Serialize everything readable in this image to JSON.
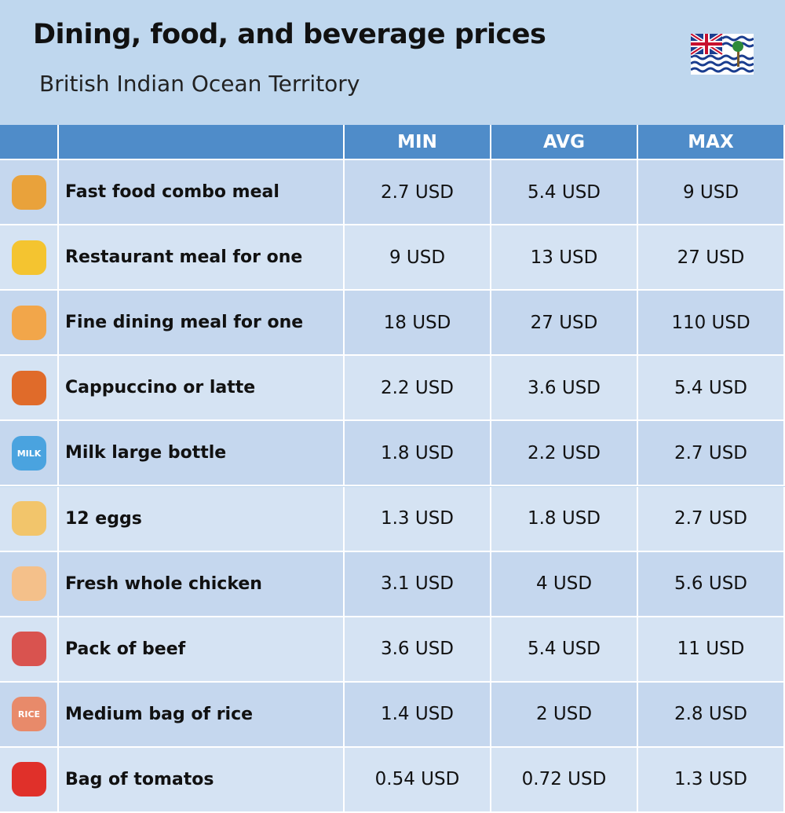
{
  "header": {
    "title": "Dining, food, and beverage prices",
    "subtitle": "British Indian Ocean Territory"
  },
  "table": {
    "columns": [
      "MIN",
      "AVG",
      "MAX"
    ],
    "rows": [
      {
        "item": "Fast food combo meal",
        "min": "2.7 USD",
        "avg": "5.4 USD",
        "max": "9 USD"
      },
      {
        "item": "Restaurant meal for one",
        "min": "9 USD",
        "avg": "13 USD",
        "max": "27 USD"
      },
      {
        "item": "Fine dining meal for one",
        "min": "18 USD",
        "avg": "27 USD",
        "max": "110 USD"
      },
      {
        "item": "Cappuccino or latte",
        "min": "2.2 USD",
        "avg": "3.6 USD",
        "max": "5.4 USD"
      },
      {
        "item": "Milk large bottle",
        "min": "1.8 USD",
        "avg": "2.2 USD",
        "max": "2.7 USD",
        "icon_text": "MILK"
      },
      {
        "item": "12 eggs",
        "min": "1.3 USD",
        "avg": "1.8 USD",
        "max": "2.7 USD"
      },
      {
        "item": "Fresh whole chicken",
        "min": "3.1 USD",
        "avg": "4 USD",
        "max": "5.6 USD"
      },
      {
        "item": "Pack of beef",
        "min": "3.6 USD",
        "avg": "5.4 USD",
        "max": "11 USD"
      },
      {
        "item": "Medium bag of rice",
        "min": "1.4 USD",
        "avg": "2 USD",
        "max": "2.8 USD",
        "icon_text": "RICE"
      },
      {
        "item": "Bag of tomatos",
        "min": "0.54 USD",
        "avg": "0.72 USD",
        "max": "1.3 USD"
      }
    ]
  }
}
